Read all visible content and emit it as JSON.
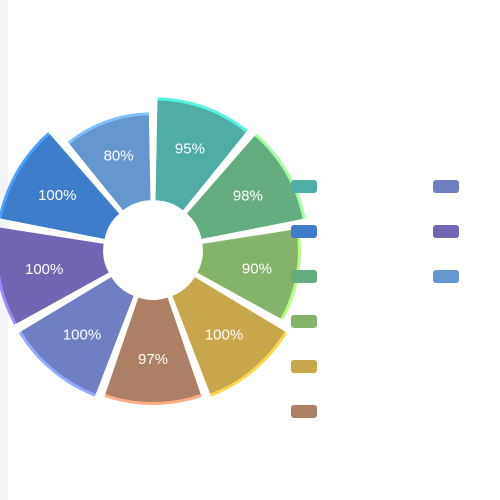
{
  "chart_data": {
    "type": "pie",
    "variant": "donut-rose",
    "grid": false,
    "legend_placement": "right",
    "slices": [
      {
        "label": "95%",
        "value": 95,
        "color": "#4fada6",
        "edge": "#52f5e0"
      },
      {
        "label": "98%",
        "value": 98,
        "color": "#64ad80",
        "edge": "#9dff9d"
      },
      {
        "label": "90%",
        "value": 90,
        "color": "#86b36a",
        "edge": "#b2ff7c"
      },
      {
        "label": "100%",
        "value": 100,
        "color": "#c8a64b",
        "edge": "#ffd64a"
      },
      {
        "label": "97%",
        "value": 97,
        "color": "#ad7f65",
        "edge": "#ffad85"
      },
      {
        "label": "100%",
        "value": 100,
        "color": "#707fc4",
        "edge": "#95abff"
      },
      {
        "label": "100%",
        "value": 100,
        "color": "#7066b3",
        "edge": "#a487ff"
      },
      {
        "label": "100%",
        "value": 100,
        "color": "#3d7dc9",
        "edge": "#47a3ff"
      },
      {
        "label": "80%",
        "value": 80,
        "color": "#6496d0",
        "edge": "#7fc0ff"
      }
    ],
    "legend": [
      {
        "color": "#4fada6",
        "name": ""
      },
      {
        "color": "#3d7dc9",
        "name": ""
      },
      {
        "color": "#64ad80",
        "name": ""
      },
      {
        "color": "#86b36a",
        "name": ""
      },
      {
        "color": "#c8a64b",
        "name": ""
      },
      {
        "color": "#ad7f65",
        "name": ""
      },
      {
        "color": "#707fc4",
        "name": ""
      },
      {
        "color": "#7066b3",
        "name": ""
      },
      {
        "color": "#6496d0",
        "name": ""
      }
    ]
  }
}
